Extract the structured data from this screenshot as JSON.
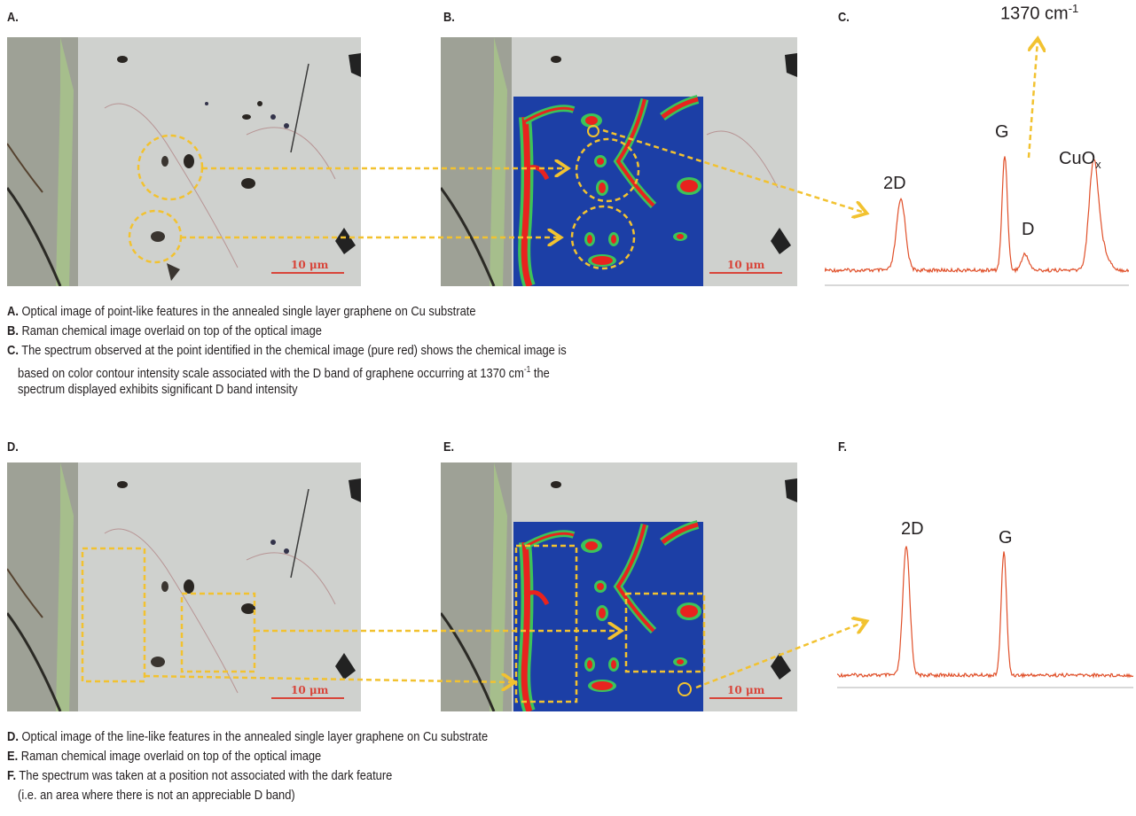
{
  "panels": {
    "A": {
      "label": "A.",
      "scale_text": "10 μm"
    },
    "B": {
      "label": "B.",
      "scale_text": "10 μm"
    },
    "C": {
      "label": "C.",
      "peak_2d": "2D",
      "peak_g": "G",
      "peak_d": "D",
      "peak_cuox_base": "CuO",
      "peak_cuox_sub": "x",
      "wavenumber_value": "1370 cm",
      "wavenumber_sup": "-1"
    },
    "D": {
      "label": "D.",
      "scale_text": "10 μm"
    },
    "E": {
      "label": "E.",
      "scale_text": "10 μm"
    },
    "F": {
      "label": "F.",
      "peak_2d": "2D",
      "peak_g": "G"
    }
  },
  "captions_top": [
    {
      "key": "A.",
      "text": " Optical image of point-like features in the annealed single layer graphene on Cu substrate"
    },
    {
      "key": "B.",
      "text": " Raman chemical image overlaid on top of the optical image"
    },
    {
      "key": "C.",
      "text": " The spectrum observed at the point identified in the chemical image (pure red) shows the chemical image is"
    }
  ],
  "caption_c_line2_a": "based on color contour intensity scale associated with the D band of graphene occurring at 1370 cm",
  "caption_c_line2_sup": "-1",
  "caption_c_line2_b": " the",
  "caption_c_line3": "spectrum displayed exhibits significant D band intensity",
  "captions_bottom": [
    {
      "key": "D.",
      "text": " Optical image of the line-like features in the annealed single layer graphene on Cu substrate"
    },
    {
      "key": "E.",
      "text": " Raman chemical image overlaid on top of the optical image"
    },
    {
      "key": "F.",
      "text": " The spectrum was taken at a position not associated with the dark feature"
    }
  ],
  "caption_f_line2": "(i.e. an area where there is not an appreciable D band)",
  "colors": {
    "arrow": "#f2c230",
    "spectrum": "#e0502a",
    "raman_blue": "#1c3fa6",
    "raman_red": "#e8231e",
    "raman_green": "#3cc35a",
    "scale": "#d8453a"
  }
}
